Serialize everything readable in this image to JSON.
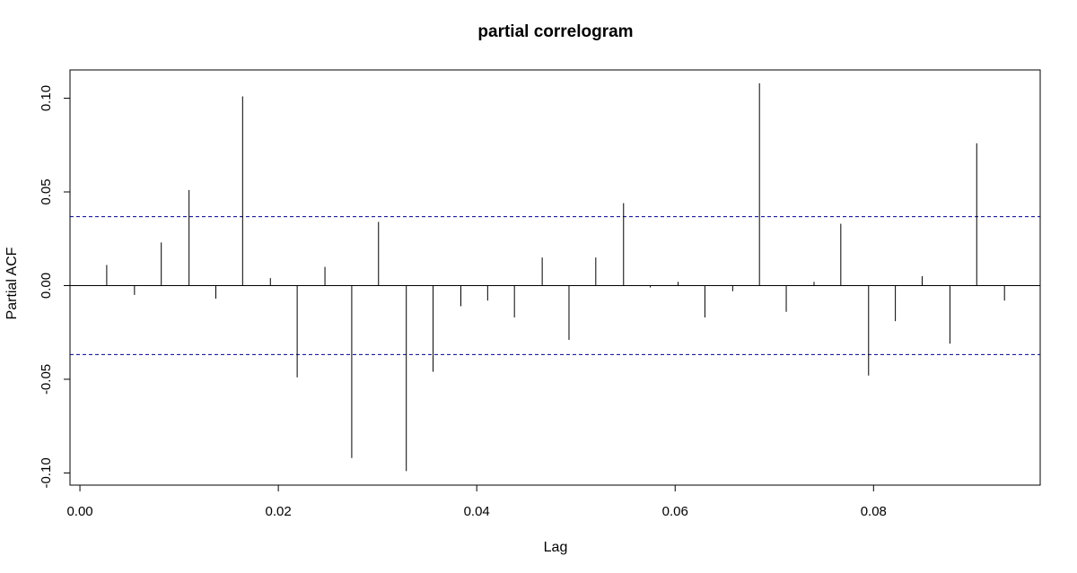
{
  "chart_data": {
    "type": "bar",
    "title": "partial correlogram",
    "xlabel": "Lag",
    "ylabel": "Partial ACF",
    "xlim": [
      -0.001,
      0.0968
    ],
    "ylim": [
      -0.1065,
      0.1151
    ],
    "x_ticks": [
      {
        "value": 0.0,
        "label": "0.00"
      },
      {
        "value": 0.02,
        "label": "0.02"
      },
      {
        "value": 0.04,
        "label": "0.04"
      },
      {
        "value": 0.06,
        "label": "0.06"
      },
      {
        "value": 0.08,
        "label": "0.08"
      }
    ],
    "y_ticks": [
      {
        "value": -0.1,
        "label": "-0.10"
      },
      {
        "value": -0.05,
        "label": "-0.05"
      },
      {
        "value": 0.0,
        "label": "0.00"
      },
      {
        "value": 0.05,
        "label": "0.05"
      },
      {
        "value": 0.1,
        "label": "0.10"
      }
    ],
    "confidence_limit": 0.0368,
    "confidence_line_color": "#00008b",
    "x": [
      0.0027,
      0.0055,
      0.0082,
      0.011,
      0.0137,
      0.0164,
      0.0192,
      0.0219,
      0.0247,
      0.0274,
      0.0301,
      0.0329,
      0.0356,
      0.0384,
      0.0411,
      0.0438,
      0.0466,
      0.0493,
      0.052,
      0.0548,
      0.0575,
      0.0603,
      0.063,
      0.0658,
      0.0685,
      0.0712,
      0.074,
      0.0767,
      0.0795,
      0.0822,
      0.0849,
      0.0877,
      0.0904,
      0.0932
    ],
    "values": [
      0.011,
      -0.005,
      0.023,
      0.051,
      -0.007,
      0.101,
      0.004,
      -0.049,
      0.01,
      -0.092,
      0.034,
      -0.099,
      -0.046,
      -0.011,
      -0.008,
      -0.017,
      0.015,
      -0.029,
      0.015,
      0.044,
      -0.001,
      0.002,
      -0.017,
      -0.003,
      0.108,
      -0.014,
      0.002,
      0.033,
      -0.048,
      -0.019,
      0.005,
      -0.031,
      0.076,
      -0.008
    ],
    "grid": false,
    "legend": "none"
  }
}
